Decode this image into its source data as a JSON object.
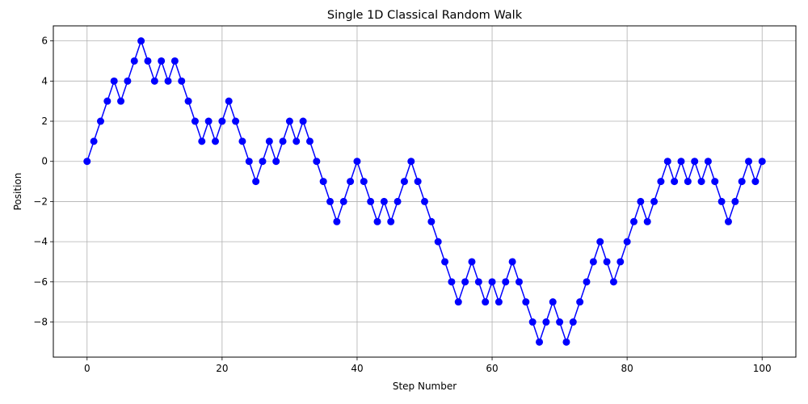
{
  "chart_data": {
    "type": "line",
    "title": "Single 1D Classical Random Walk",
    "xlabel": "Step Number",
    "ylabel": "Position",
    "xlim": [
      -5,
      105
    ],
    "ylim": [
      -9.75,
      6.75
    ],
    "xticks": [
      0,
      20,
      40,
      60,
      80,
      100
    ],
    "yticks": [
      -8,
      -6,
      -4,
      -2,
      0,
      2,
      4,
      6
    ],
    "grid": true,
    "series": [
      {
        "color": "#0000ff",
        "marker": "circle",
        "x": [
          0,
          1,
          2,
          3,
          4,
          5,
          6,
          7,
          8,
          9,
          10,
          11,
          12,
          13,
          14,
          15,
          16,
          17,
          18,
          19,
          20,
          21,
          22,
          23,
          24,
          25,
          26,
          27,
          28,
          29,
          30,
          31,
          32,
          33,
          34,
          35,
          36,
          37,
          38,
          39,
          40,
          41,
          42,
          43,
          44,
          45,
          46,
          47,
          48,
          49,
          50,
          51,
          52,
          53,
          54,
          55,
          56,
          57,
          58,
          59,
          60,
          61,
          62,
          63,
          64,
          65,
          66,
          67,
          68,
          69,
          70,
          71,
          72,
          73,
          74,
          75,
          76,
          77,
          78,
          79,
          80,
          81,
          82,
          83,
          84,
          85,
          86,
          87,
          88,
          89,
          90,
          91,
          92,
          93,
          94,
          95,
          96,
          97,
          98,
          99,
          100
        ],
        "y": [
          0,
          1,
          2,
          3,
          4,
          3,
          4,
          5,
          6,
          5,
          4,
          5,
          4,
          5,
          4,
          3,
          2,
          1,
          2,
          1,
          2,
          3,
          2,
          1,
          0,
          -1,
          0,
          1,
          0,
          1,
          2,
          1,
          2,
          1,
          0,
          -1,
          -2,
          -3,
          -2,
          -1,
          0,
          -1,
          -2,
          -3,
          -2,
          -3,
          -2,
          -1,
          0,
          -1,
          -2,
          -3,
          -4,
          -5,
          -6,
          -7,
          -6,
          -5,
          -6,
          -7,
          -6,
          -7,
          -6,
          -5,
          -6,
          -7,
          -8,
          -9,
          -8,
          -7,
          -8,
          -9,
          -8,
          -7,
          -6,
          -5,
          -4,
          -5,
          -6,
          -5,
          -4,
          -3,
          -2,
          -3,
          -2,
          -1,
          0,
          -1,
          0,
          -1,
          0,
          -1,
          0,
          -1,
          -2,
          -3,
          -2,
          -1,
          0,
          -1,
          0
        ]
      }
    ]
  }
}
